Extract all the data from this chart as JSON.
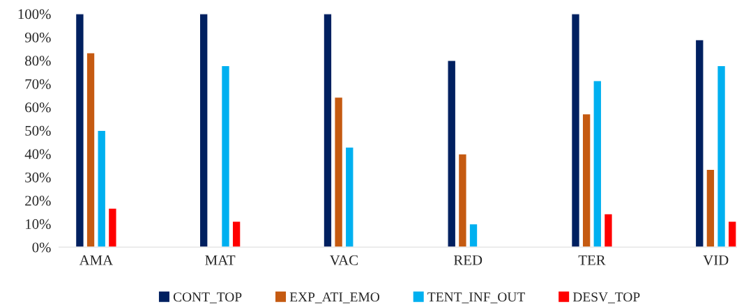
{
  "chart_data": {
    "type": "bar",
    "categories": [
      "AMA",
      "MAT",
      "VAC",
      "RED",
      "TER",
      "VID"
    ],
    "series": [
      {
        "name": "CONT_TOP",
        "color": "#002060",
        "values": [
          100,
          100,
          100,
          80,
          100,
          88.9
        ]
      },
      {
        "name": "EXP_ATI_EMO",
        "color": "#c55a11",
        "values": [
          83.3,
          null,
          64.3,
          40,
          57.1,
          33.3
        ]
      },
      {
        "name": "TENT_INF_OUT",
        "color": "#00b0f0",
        "values": [
          50,
          77.8,
          42.9,
          10,
          71.4,
          77.8
        ]
      },
      {
        "name": "DESV_TOP",
        "color": "#ff0000",
        "values": [
          16.7,
          11.1,
          null,
          null,
          14.3,
          11.1
        ]
      }
    ],
    "ylim": [
      0,
      100
    ],
    "yticks": [
      {
        "value": 0,
        "label": "0%"
      },
      {
        "value": 10,
        "label": "10%"
      },
      {
        "value": 20,
        "label": "20%"
      },
      {
        "value": 30,
        "label": "30%"
      },
      {
        "value": 40,
        "label": "40%"
      },
      {
        "value": 50,
        "label": "50%"
      },
      {
        "value": 60,
        "label": "60%"
      },
      {
        "value": 70,
        "label": "70%"
      },
      {
        "value": 80,
        "label": "80%"
      },
      {
        "value": 90,
        "label": "90%"
      },
      {
        "value": 100,
        "label": "100%"
      }
    ],
    "grid": false,
    "legend": "bottom"
  }
}
